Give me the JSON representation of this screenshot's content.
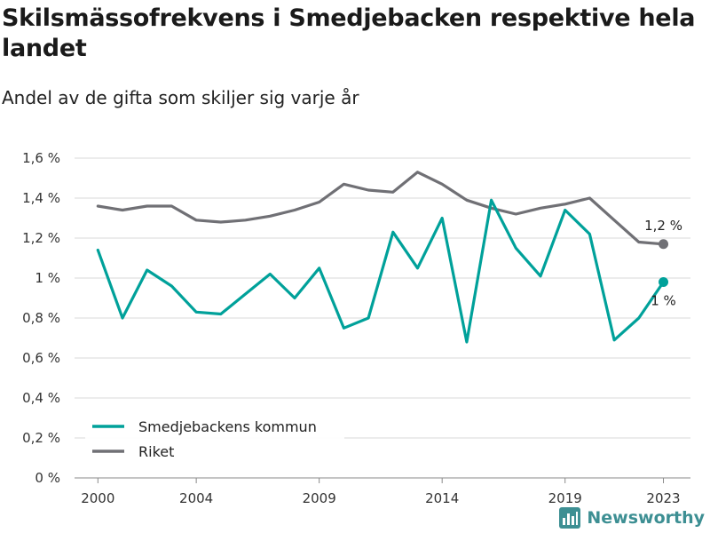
{
  "title": "Skilsmässofrekvens i Smedjebacken respektive hela landet",
  "subtitle": "Andel av de gifta som skiljer sig varje år",
  "logo": "Newsworthy",
  "chart_data": {
    "type": "line",
    "x": [
      2000,
      2001,
      2002,
      2003,
      2004,
      2005,
      2006,
      2007,
      2008,
      2009,
      2010,
      2011,
      2012,
      2013,
      2014,
      2015,
      2016,
      2017,
      2018,
      2019,
      2020,
      2021,
      2022,
      2023
    ],
    "series": [
      {
        "name": "Smedjebackens kommun",
        "color": "#00a19a",
        "values": [
          1.14,
          0.8,
          1.04,
          0.96,
          0.83,
          0.82,
          0.92,
          1.02,
          0.9,
          1.05,
          0.75,
          0.8,
          1.23,
          1.05,
          1.3,
          0.68,
          1.39,
          1.15,
          1.01,
          1.34,
          1.22,
          0.69,
          0.8,
          0.98
        ],
        "end_label": "1 %"
      },
      {
        "name": "Riket",
        "color": "#707075",
        "values": [
          1.36,
          1.34,
          1.36,
          1.36,
          1.29,
          1.28,
          1.29,
          1.31,
          1.34,
          1.38,
          1.47,
          1.44,
          1.43,
          1.53,
          1.47,
          1.39,
          1.35,
          1.32,
          1.35,
          1.37,
          1.4,
          1.29,
          1.18,
          1.17
        ],
        "end_label": "1,2 %"
      }
    ],
    "ylim": [
      0,
      1.6
    ],
    "yticks": [
      0,
      0.2,
      0.4,
      0.6,
      0.8,
      1.0,
      1.2,
      1.4,
      1.6
    ],
    "ytick_labels": [
      "0 %",
      "0,2 %",
      "0,4 %",
      "0,6 %",
      "0,8 %",
      "1 %",
      "1,2 %",
      "1,4 %",
      "1,6 %"
    ],
    "xticks": [
      2000,
      2004,
      2009,
      2014,
      2019,
      2023
    ],
    "xtick_labels": [
      "2000",
      "2004",
      "2009",
      "2014",
      "2019",
      "2023"
    ],
    "grid": true,
    "legend_position": "bottom-left"
  }
}
